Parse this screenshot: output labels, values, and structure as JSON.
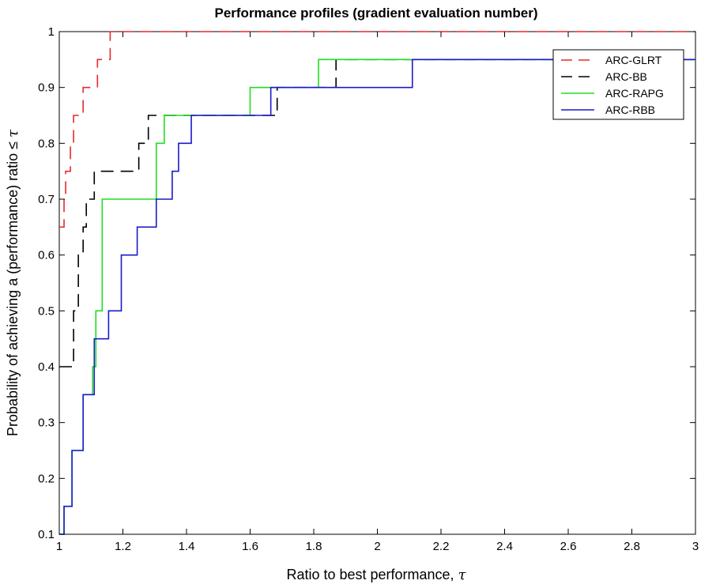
{
  "chart_data": {
    "type": "line",
    "title": "Performance profiles (gradient evaluation number)",
    "xlabel": "Ratio to best performance,",
    "xlabel_symbol": "τ",
    "ylabel": "Probability of achieving a (performance) ratio ≤",
    "ylabel_symbol": "τ",
    "xlim": [
      1,
      3
    ],
    "ylim": [
      0.1,
      1
    ],
    "xticks": [
      "1",
      "1.2",
      "1.4",
      "1.6",
      "1.8",
      "2",
      "2.2",
      "2.4",
      "2.6",
      "2.8",
      "3"
    ],
    "yticks": [
      "0.1",
      "0.2",
      "0.3",
      "0.4",
      "0.5",
      "0.6",
      "0.7",
      "0.8",
      "0.9",
      "1"
    ],
    "legend_position": "top-right",
    "grid": false,
    "step": true,
    "series": [
      {
        "name": "ARC-GLRT",
        "color": "#e8282b",
        "dash": "dashed",
        "points": [
          [
            1.0,
            0.65
          ],
          [
            1.015,
            0.65
          ],
          [
            1.015,
            0.7
          ],
          [
            1.02,
            0.7
          ],
          [
            1.02,
            0.75
          ],
          [
            1.035,
            0.75
          ],
          [
            1.035,
            0.8
          ],
          [
            1.045,
            0.8
          ],
          [
            1.045,
            0.85
          ],
          [
            1.075,
            0.85
          ],
          [
            1.075,
            0.9
          ],
          [
            1.12,
            0.9
          ],
          [
            1.12,
            0.95
          ],
          [
            1.16,
            0.95
          ],
          [
            1.16,
            1.0
          ],
          [
            3.0,
            1.0
          ]
        ]
      },
      {
        "name": "ARC-BB",
        "color": "#000000",
        "dash": "dashed",
        "points": [
          [
            1.0,
            0.4
          ],
          [
            1.045,
            0.4
          ],
          [
            1.045,
            0.5
          ],
          [
            1.06,
            0.5
          ],
          [
            1.06,
            0.6
          ],
          [
            1.075,
            0.6
          ],
          [
            1.075,
            0.65
          ],
          [
            1.085,
            0.65
          ],
          [
            1.085,
            0.7
          ],
          [
            1.11,
            0.7
          ],
          [
            1.11,
            0.75
          ],
          [
            1.25,
            0.75
          ],
          [
            1.25,
            0.8
          ],
          [
            1.28,
            0.8
          ],
          [
            1.28,
            0.85
          ],
          [
            1.685,
            0.85
          ],
          [
            1.685,
            0.9
          ],
          [
            1.87,
            0.9
          ],
          [
            1.87,
            0.95
          ],
          [
            3.0,
            0.95
          ]
        ]
      },
      {
        "name": "ARC-RAPG",
        "color": "#22dd22",
        "dash": "solid",
        "points": [
          [
            1.0,
            0.1
          ],
          [
            1.015,
            0.1
          ],
          [
            1.015,
            0.15
          ],
          [
            1.04,
            0.15
          ],
          [
            1.04,
            0.25
          ],
          [
            1.075,
            0.25
          ],
          [
            1.075,
            0.35
          ],
          [
            1.105,
            0.35
          ],
          [
            1.105,
            0.4
          ],
          [
            1.115,
            0.4
          ],
          [
            1.115,
            0.5
          ],
          [
            1.135,
            0.5
          ],
          [
            1.135,
            0.7
          ],
          [
            1.305,
            0.7
          ],
          [
            1.305,
            0.8
          ],
          [
            1.33,
            0.8
          ],
          [
            1.33,
            0.85
          ],
          [
            1.6,
            0.85
          ],
          [
            1.6,
            0.9
          ],
          [
            1.815,
            0.9
          ],
          [
            1.815,
            0.95
          ],
          [
            3.0,
            0.95
          ]
        ]
      },
      {
        "name": "ARC-RBB",
        "color": "#1a1acc",
        "dash": "solid",
        "points": [
          [
            1.0,
            0.1
          ],
          [
            1.015,
            0.1
          ],
          [
            1.015,
            0.15
          ],
          [
            1.04,
            0.15
          ],
          [
            1.04,
            0.25
          ],
          [
            1.075,
            0.25
          ],
          [
            1.075,
            0.35
          ],
          [
            1.11,
            0.35
          ],
          [
            1.11,
            0.45
          ],
          [
            1.155,
            0.45
          ],
          [
            1.155,
            0.5
          ],
          [
            1.195,
            0.5
          ],
          [
            1.195,
            0.6
          ],
          [
            1.245,
            0.6
          ],
          [
            1.245,
            0.65
          ],
          [
            1.305,
            0.65
          ],
          [
            1.305,
            0.7
          ],
          [
            1.355,
            0.7
          ],
          [
            1.355,
            0.75
          ],
          [
            1.375,
            0.75
          ],
          [
            1.375,
            0.8
          ],
          [
            1.415,
            0.8
          ],
          [
            1.415,
            0.85
          ],
          [
            1.665,
            0.85
          ],
          [
            1.665,
            0.9
          ],
          [
            2.11,
            0.9
          ],
          [
            2.11,
            0.95
          ],
          [
            3.0,
            0.95
          ]
        ]
      }
    ]
  }
}
